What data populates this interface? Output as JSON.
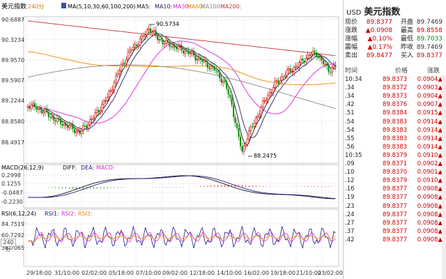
{
  "header": {
    "title": "美元指数",
    "period": "240分",
    "ma_label": "MA(5,10,30,60,100,200)",
    "ma_names": [
      "MA5:",
      "MA10:",
      "MA30:",
      "MA60:",
      "MA100:",
      "MA200:"
    ]
  },
  "colors": {
    "up": "#d00000",
    "down": "#008800",
    "ma5": "#111111",
    "ma10": "#222266",
    "ma30": "#dd22dd",
    "ma60": "#ee8800",
    "ma100": "#888888",
    "ma200": "#c83232",
    "diff": "#111111",
    "dea": "#1a1a80"
  },
  "price_axis": [
    "90.6887",
    "90.3234",
    "89.9570",
    "89.5907",
    "89.2244",
    "88.8580",
    "88.4917"
  ],
  "annotations": {
    "high": "90.5734",
    "low": "88.2475"
  },
  "macd": {
    "label": "MACD(26,12,9)",
    "diff": "DIFF:",
    "dea": "DEA:",
    "macd": "MACD:",
    "axis": [
      "0.2998",
      "0.1255",
      "-0.0487",
      "-0.2230"
    ]
  },
  "rsi": {
    "label": "RSI(6,12,24)",
    "rsi1": "RSI1:",
    "rsi2": "RSI2:",
    "rsi3": "RSI3:",
    "axis": [
      "84.7519",
      "60.7292",
      "36.7065"
    ]
  },
  "x_axis": [
    "29/18:00",
    "31/10:00",
    "02/02:00",
    "05/18:00",
    "07/10:00",
    "09/02:00",
    "12/18:00",
    "14/10:00",
    "16/02:00",
    "19/18:00",
    "21/10:00",
    "23/02:00"
  ],
  "bottom_button": "240分",
  "panel": {
    "symbol": "USD",
    "name": "美元指数",
    "quotes": [
      {
        "l1": "现价",
        "v1": "89.8377",
        "l2": "开盘",
        "v2": "89.7469",
        "c1": "red",
        "c2": "dark"
      },
      {
        "l1": "涨跌",
        "v1": "▲0.0908",
        "l2": "最高",
        "v2": "89.8558",
        "c1": "red",
        "c2": "red"
      },
      {
        "l1": "涨幅",
        "v1": "▲0.10%",
        "l2": "最低",
        "v2": "89.7033",
        "c1": "red",
        "c2": "green"
      },
      {
        "l1": "震幅",
        "v1": "▲0.17%",
        "l2": "昨收",
        "v2": "89.7469",
        "c1": "red",
        "c2": "dark"
      },
      {
        "l1": "卖出",
        "v1": "89.8477",
        "l2": "买入",
        "v2": "89.8377",
        "c1": "red",
        "c2": "red"
      }
    ],
    "tick_headers": {
      "time": "时间",
      "price": "价格",
      "change": "涨跌"
    },
    "ticks": [
      {
        "time": "10:34",
        "price": "89.8373",
        "change": "0.0904▲"
      },
      {
        "time": ".34",
        "price": "89.8372",
        "change": "0.0903▲"
      },
      {
        "time": ".34",
        "price": "89.8373",
        "change": "0.0904▲"
      },
      {
        "time": ".42",
        "price": "89.8376",
        "change": "0.0907▲"
      },
      {
        "time": ".51",
        "price": "89.8384",
        "change": "0.0915▲"
      },
      {
        "time": ".54",
        "price": "89.8383",
        "change": "0.0914▲"
      },
      {
        "time": ".54",
        "price": "89.8383",
        "change": "0.0914▲"
      },
      {
        "time": ".55",
        "price": "89.8383",
        "change": "0.0914▲"
      },
      {
        "time": ".56",
        "price": "89.8383",
        "change": "0.0914▲"
      },
      {
        "time": "10:35",
        "price": "89.8379",
        "change": "0.0910▲"
      },
      {
        "time": ".09",
        "price": "89.8371",
        "change": "0.0902▲"
      },
      {
        "time": ".10",
        "price": "89.8370",
        "change": "0.0901▲"
      },
      {
        "time": ".12",
        "price": "89.8379",
        "change": "0.0910▲"
      },
      {
        "time": ".16",
        "price": "89.8377",
        "change": "0.0908▲"
      },
      {
        "time": ".19",
        "price": "89.8377",
        "change": "0.0908▲"
      },
      {
        "time": ".23",
        "price": "89.8377",
        "change": "0.0908▲"
      },
      {
        "time": ".24",
        "price": "89.8377",
        "change": "0.0908▲"
      },
      {
        "time": ".27",
        "price": "89.8377",
        "change": "0.0908▲"
      },
      {
        "time": ".37",
        "price": "89.8377",
        "change": "0.0908▲"
      },
      {
        "time": ".42",
        "price": "89.8377",
        "change": "0.0908▲"
      }
    ]
  }
}
